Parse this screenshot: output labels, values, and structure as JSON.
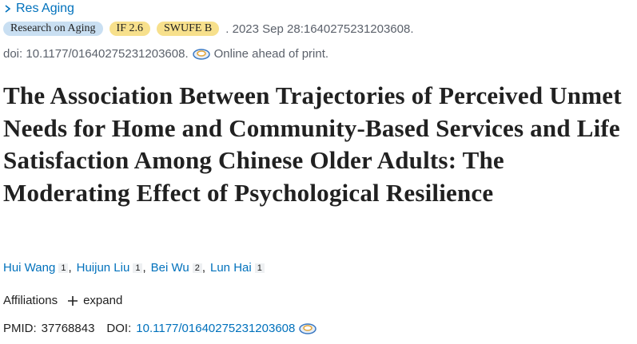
{
  "journal_link": "Res Aging",
  "badges": [
    "Research on Aging",
    "IF 2.6",
    "SWUFE B"
  ],
  "citation": ". 2023 Sep 28:1640275231203608.",
  "doi_line": "doi: 10.1177/01640275231203608.",
  "status": "Online ahead of print.",
  "title": "The Association Between Trajectories of Perceived Unmet Needs for Home and Community-Based Services and Life Satisfaction Among Chinese Older Adults: The Moderating Effect of Psychological Resilience",
  "authors": [
    {
      "name": "Hui Wang",
      "affiliation": "1"
    },
    {
      "name": "Huijun Liu",
      "affiliation": "1"
    },
    {
      "name": "Bei Wu",
      "affiliation": "2"
    },
    {
      "name": "Lun Hai",
      "affiliation": "1"
    }
  ],
  "author_separator": ",",
  "affiliations_label": "Affiliations",
  "expand": "expand",
  "pmid_label": "PMID:",
  "pmid": "37768843",
  "doi_label": "DOI:",
  "doi": "10.1177/01640275231203608"
}
